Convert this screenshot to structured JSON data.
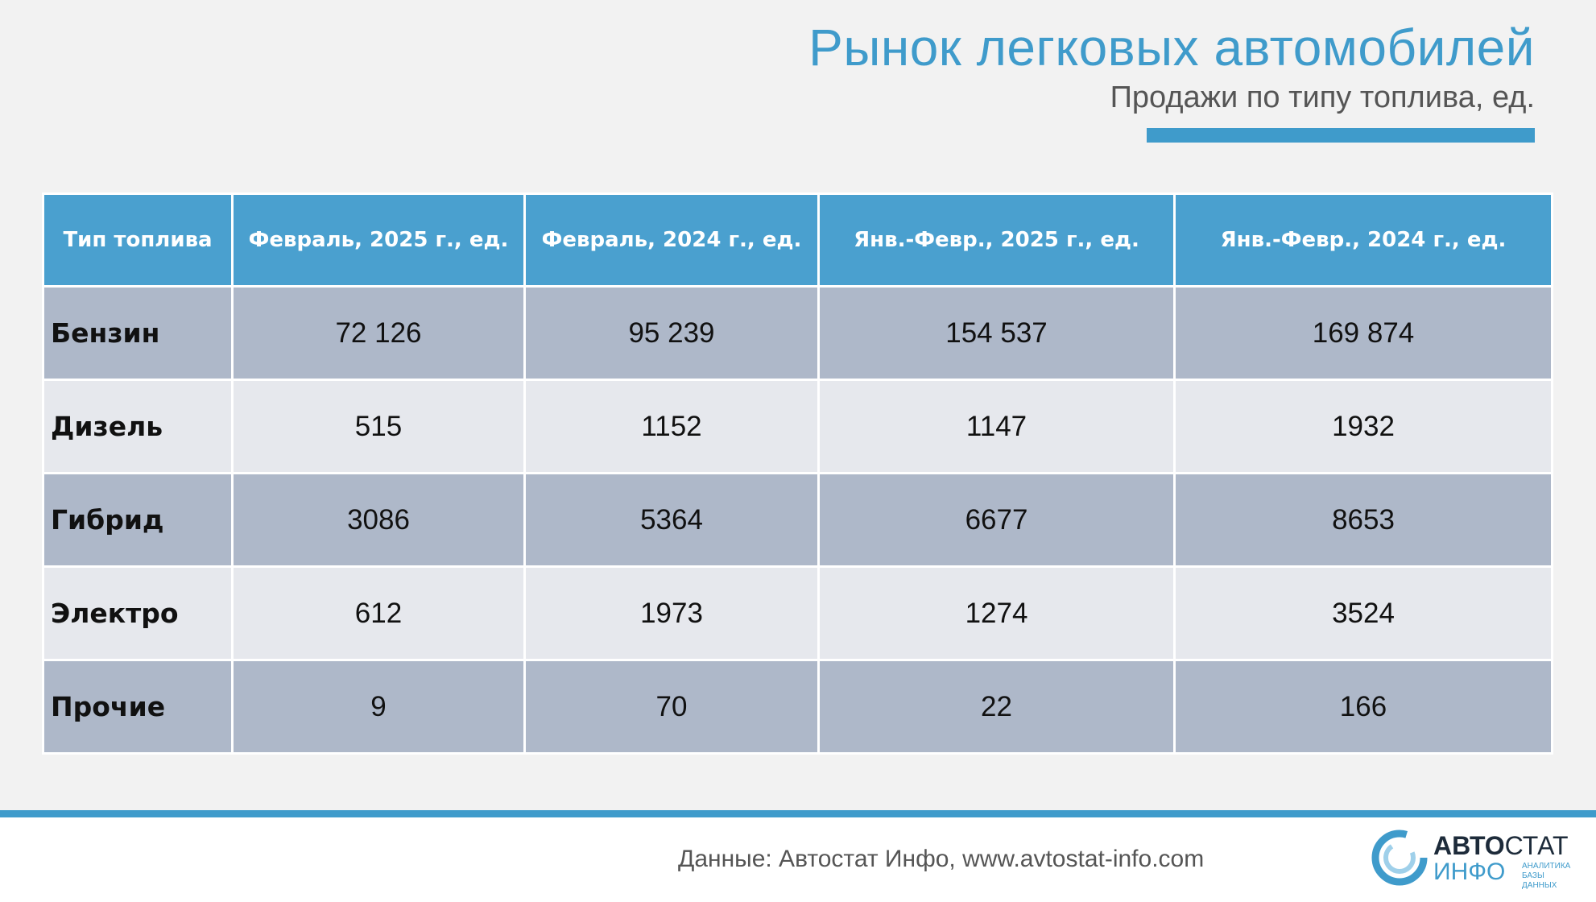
{
  "header": {
    "title": "Рынок легковых автомобилей",
    "subtitle": "Продажи по типу топлива, ед."
  },
  "table": {
    "columns": [
      "Тип топлива",
      "Февраль, 2025 г., ед.",
      "Февраль, 2024 г., ед.",
      "Янв.-Февр., 2025 г., ед.",
      "Янв.-Февр., 2024 г., ед."
    ],
    "rows": [
      [
        "Бензин",
        "72 126",
        "95 239",
        "154 537",
        "169 874"
      ],
      [
        "Дизель",
        "515",
        "1152",
        "1147",
        "1932"
      ],
      [
        "Гибрид",
        "3086",
        "5364",
        "6677",
        "8653"
      ],
      [
        "Электро",
        "612",
        "1973",
        "1274",
        "3524"
      ],
      [
        "Прочие",
        "9",
        "70",
        "22",
        "166"
      ]
    ]
  },
  "footer": {
    "source": "Данные: Автостат Инфо, www.avtostat-info.com",
    "logo": {
      "part1": "АВТО",
      "part2": "СТАТ",
      "part3": "ИНФО",
      "tagline1": "АНАЛИТИКА",
      "tagline2": "БАЗЫ ДАННЫХ"
    }
  }
}
